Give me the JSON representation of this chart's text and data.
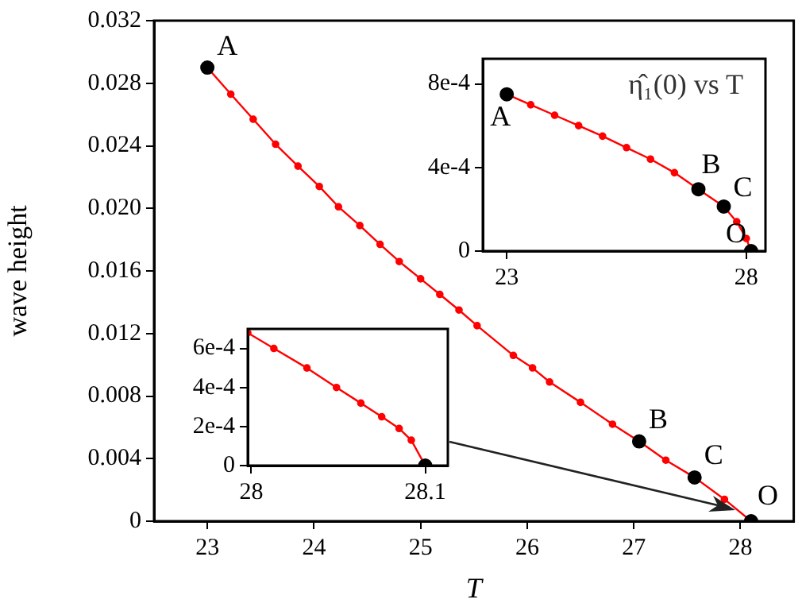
{
  "chart_data": [
    {
      "type": "line",
      "xlabel": "T",
      "ylabel": "wave height",
      "xlim": [
        22.5,
        28.5
      ],
      "xticks": [
        23,
        24,
        25,
        26,
        27,
        28
      ],
      "ylim": [
        0,
        0.032
      ],
      "yticks": [
        0,
        0.004,
        0.008,
        0.012,
        0.016,
        {
          "value": 0.02,
          "label": "0.020"
        },
        0.024,
        0.028,
        0.032
      ],
      "grid": false,
      "marker": "circle",
      "series": [
        {
          "type": "line",
          "color": "#ff0000",
          "x": [
            23,
            23.22,
            23.43,
            23.64,
            23.85,
            24.05,
            24.23,
            24.43,
            24.62,
            24.8,
            25,
            25.18,
            25.36,
            25.53,
            25.87,
            26.05,
            26.21,
            26.5,
            26.8,
            27.05,
            27.3,
            27.57,
            27.85,
            28.1
          ],
          "values": [
            0.029,
            0.0273,
            0.0257,
            0.0241,
            0.0227,
            0.0214,
            0.0201,
            0.0189,
            0.0177,
            0.0166,
            0.0155,
            0.0145,
            0.0135,
            0.0125,
            0.0106,
            0.0098,
            0.0089,
            0.0076,
            0.0062,
            0.0051,
            0.0039,
            0.0028,
            0.0014,
            0
          ]
        },
        {
          "type": "scatter",
          "color": "#000000",
          "x": [
            23,
            27.05,
            27.57,
            28.1
          ],
          "values": [
            0.029,
            0.0051,
            0.0028,
            0
          ]
        }
      ],
      "annotations": [
        {
          "text": "A",
          "x": 23,
          "y": 0.029
        },
        {
          "text": "B",
          "x": 27.05,
          "y": 0.0051
        },
        {
          "text": "C",
          "x": 27.57,
          "y": 0.0028
        },
        {
          "text": "O",
          "x": 28.1,
          "y": 0
        }
      ]
    },
    {
      "type": "line",
      "xlim": [
        22.5,
        28.4
      ],
      "xticks": [
        23,
        28
      ],
      "ylim": [
        0,
        0.00092
      ],
      "yticks": [
        0,
        {
          "value": 0.0004,
          "label": "4e-4"
        },
        {
          "value": 0.0008,
          "label": "8e-4"
        }
      ],
      "grid": false,
      "marker": "circle",
      "series": [
        {
          "type": "line",
          "color": "#ff0000",
          "x": [
            23,
            23.5,
            24,
            24.5,
            25,
            25.5,
            26,
            26.5,
            27,
            27.53,
            27.8,
            28,
            28.1
          ],
          "values": [
            0.00075,
            0.0007,
            0.00065,
            0.0006,
            0.00055,
            0.000495,
            0.00044,
            0.000375,
            0.000296,
            0.000213,
            0.00014,
            6e-05,
            0
          ]
        },
        {
          "type": "scatter",
          "color": "#000000",
          "x": [
            23,
            27,
            27.53,
            28.1
          ],
          "values": [
            0.00075,
            0.000296,
            0.000213,
            0
          ]
        }
      ],
      "annotations": [
        "η̂₁(0) vs T",
        {
          "text": "A",
          "x": 23,
          "y": 0.00075
        },
        {
          "text": "B",
          "x": 27,
          "y": 0.000296
        },
        {
          "text": "C",
          "x": 27.53,
          "y": 0.000213
        },
        {
          "text": "O",
          "x": 28.1,
          "y": 0
        }
      ]
    },
    {
      "type": "line",
      "xlim": [
        27.998,
        28.113
      ],
      "xticks": [
        28,
        28.1
      ],
      "ylim": [
        0,
        0.0007
      ],
      "yticks": [
        0,
        {
          "value": 0.0002,
          "label": "2e-4"
        },
        {
          "value": 0.0004,
          "label": "4e-4"
        },
        {
          "value": 0.0006,
          "label": "6e-4"
        }
      ],
      "grid": false,
      "marker": "circle",
      "series": [
        {
          "type": "line",
          "color": "#ff0000",
          "x": [
            27.998,
            28.013,
            28.032,
            28.049,
            28.063,
            28.075,
            28.085,
            28.092,
            28.1
          ],
          "values": [
            0.00068,
            0.0006,
            0.0005,
            0.0004,
            0.00032,
            0.00025,
            0.00019,
            0.00013,
            0
          ]
        },
        {
          "type": "scatter",
          "color": "#000000",
          "x": [
            28.1
          ],
          "values": [
            0
          ]
        }
      ]
    }
  ]
}
